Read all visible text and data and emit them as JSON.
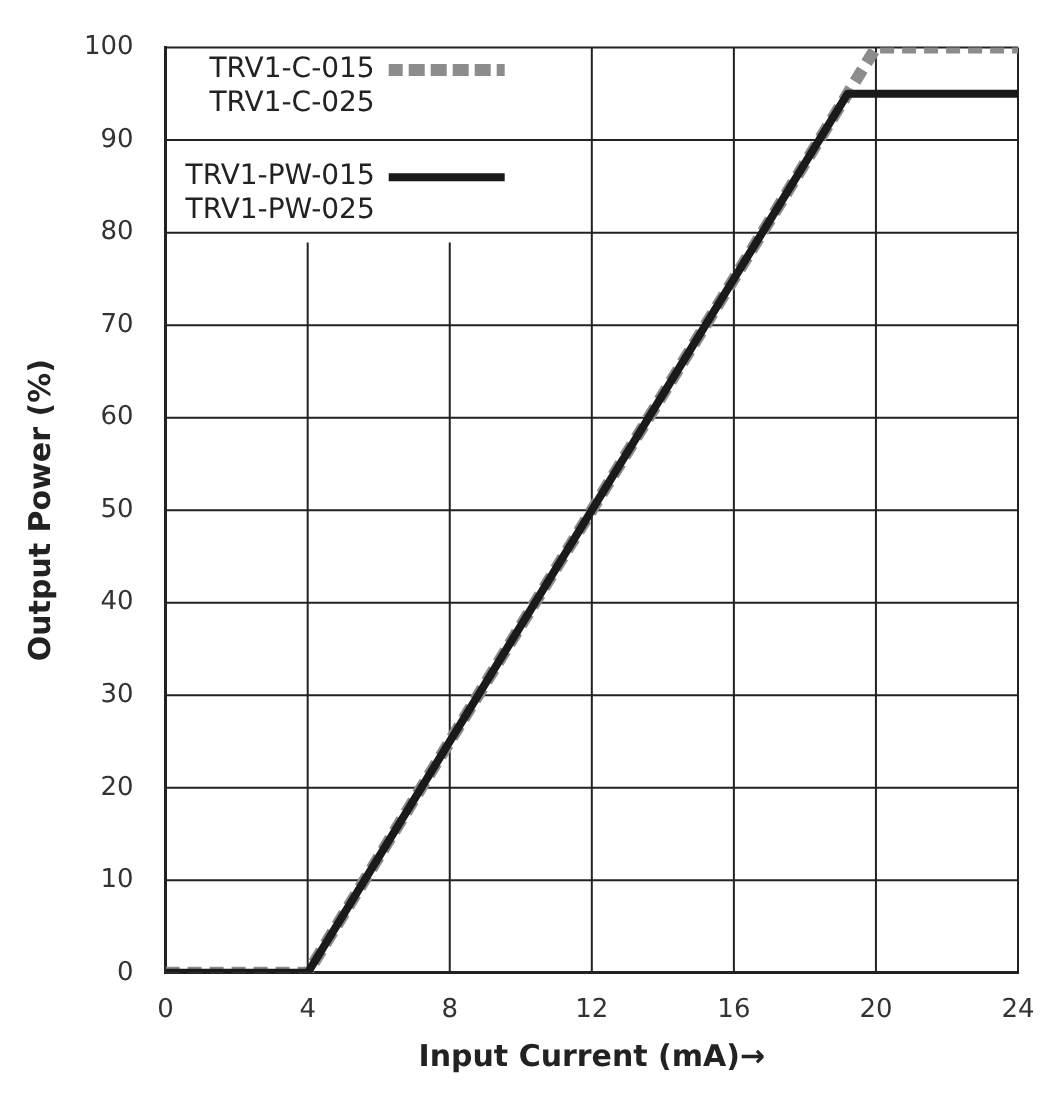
{
  "chart_data": {
    "type": "line",
    "xlabel": "Input Current (mA)→",
    "ylabel": "Output Power (%)",
    "xlim": [
      0,
      24
    ],
    "xticks": [
      0,
      4,
      8,
      12,
      16,
      20,
      24
    ],
    "ylim": [
      0,
      100
    ],
    "yticks": [
      0,
      10,
      20,
      30,
      40,
      50,
      60,
      70,
      80,
      90,
      100
    ],
    "grid": true,
    "legend": "top left",
    "marker": "none",
    "series": [
      {
        "name": "TRV1-PW-015\nTRV1-PW-025",
        "color": "#1a1a1a",
        "line_style": "solid",
        "x": [
          0,
          4,
          19.2,
          24
        ],
        "values": [
          0,
          0,
          95,
          95
        ]
      },
      {
        "name": "TRV1-C-015\nTRV1-C-025",
        "color": "#8c8c8c",
        "line_style": "dashed",
        "x": [
          0,
          4,
          20,
          24
        ],
        "values": [
          0,
          0,
          100,
          100
        ]
      }
    ]
  }
}
